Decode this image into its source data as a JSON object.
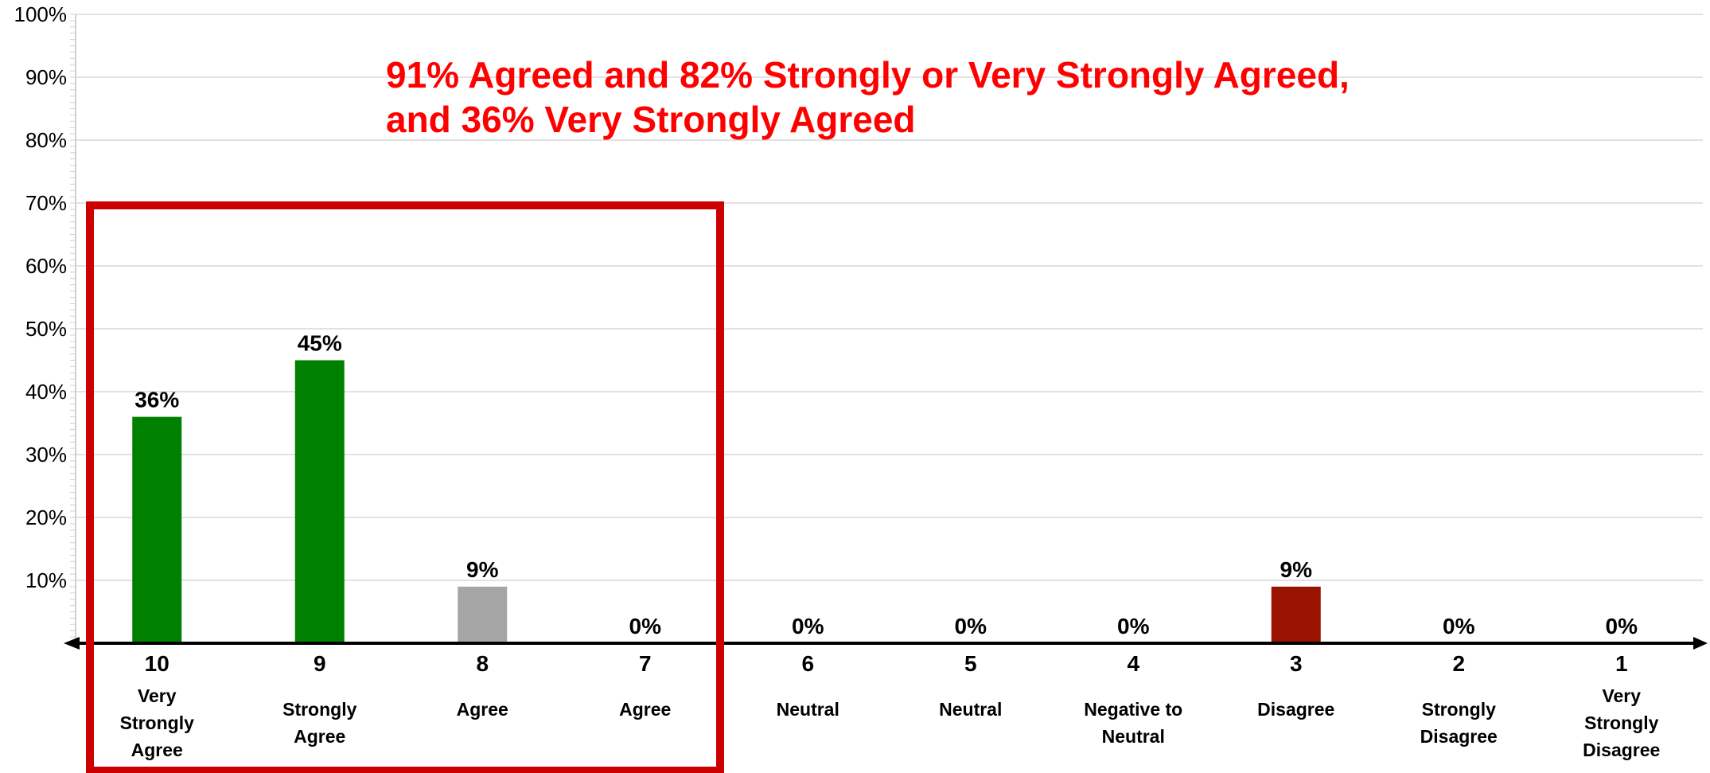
{
  "chart_data": {
    "type": "bar",
    "title": "",
    "xlabel": "",
    "ylabel": "",
    "ylim": [
      0,
      100
    ],
    "yticks": [
      "10%",
      "20%",
      "30%",
      "40%",
      "50%",
      "60%",
      "70%",
      "80%",
      "90%",
      "100%"
    ],
    "grid": true,
    "categories": [
      {
        "number": "10",
        "label": [
          "Very",
          "Strongly",
          "Agree"
        ]
      },
      {
        "number": "9",
        "label": [
          "Strongly",
          "Agree"
        ]
      },
      {
        "number": "8",
        "label": [
          "Agree"
        ]
      },
      {
        "number": "7",
        "label": [
          "Agree"
        ]
      },
      {
        "number": "6",
        "label": [
          "Neutral"
        ]
      },
      {
        "number": "5",
        "label": [
          "Neutral"
        ]
      },
      {
        "number": "4",
        "label": [
          "Negative to",
          "Neutral"
        ]
      },
      {
        "number": "3",
        "label": [
          "Disagree"
        ]
      },
      {
        "number": "2",
        "label": [
          "Strongly",
          "Disagree"
        ]
      },
      {
        "number": "1",
        "label": [
          "Very",
          "Strongly",
          "Disagree"
        ]
      }
    ],
    "values": [
      36,
      45,
      9,
      0,
      0,
      0,
      0,
      9,
      0,
      0
    ],
    "data_labels": [
      "36%",
      "45%",
      "9%",
      "0%",
      "0%",
      "0%",
      "0%",
      "9%",
      "0%",
      "0%"
    ],
    "bar_colors": [
      "#008000",
      "#008000",
      "#a6a6a6",
      "#a6a6a6",
      "#a6a6a6",
      "#a6a6a6",
      "#a6a6a6",
      "#9a1200",
      "#9a1200",
      "#9a1200"
    ],
    "highlight_box_color": "#cc0000",
    "highlight_categories": [
      "10",
      "9",
      "8",
      "7"
    ],
    "annotation": [
      "91% Agreed and 82% Strongly or Very Strongly Agreed,",
      "and 36% Very Strongly Agreed"
    ],
    "annotation_color": "#ff0000"
  }
}
